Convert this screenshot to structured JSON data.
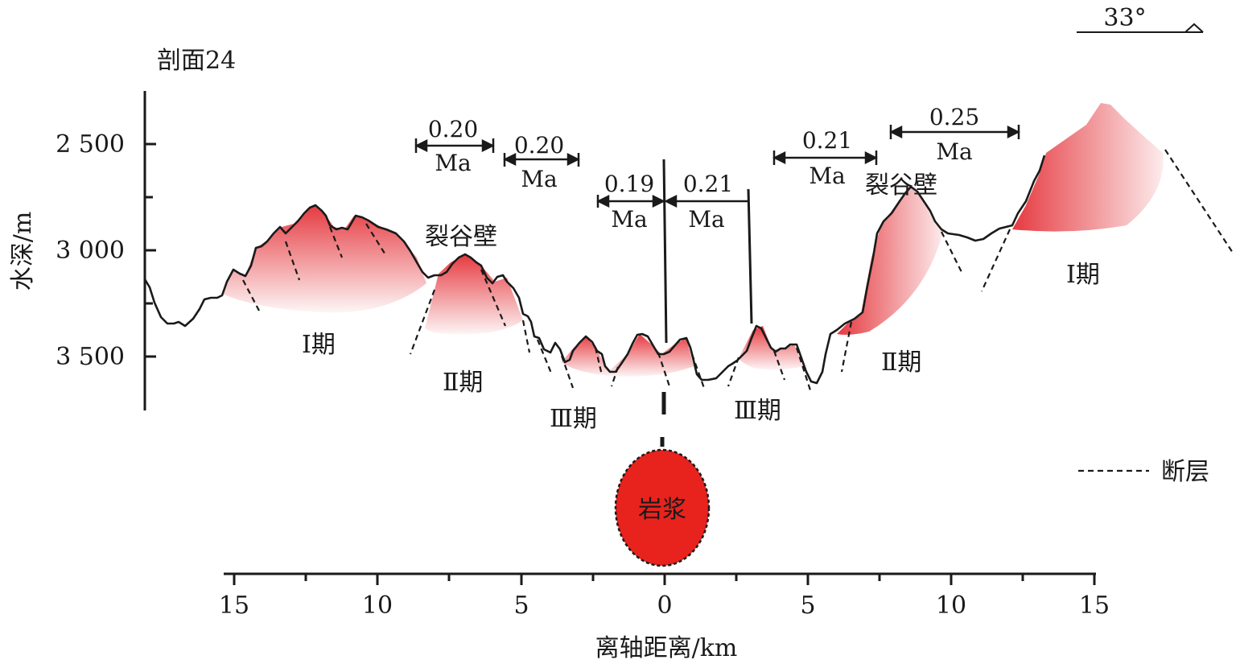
{
  "title": "剖面24",
  "y_axis": {
    "label": "水深/m",
    "ticks": [
      "2 500",
      "3 000",
      "3 500"
    ]
  },
  "x_axis": {
    "label": "离轴距离/km",
    "ticks": [
      "15",
      "10",
      "5",
      "0",
      "5",
      "10",
      "15"
    ]
  },
  "orientation": {
    "angle": "33°"
  },
  "legend": {
    "fault": "断层"
  },
  "magma": "岩浆",
  "rift_walls": [
    "裂谷壁",
    "裂谷壁"
  ],
  "phases": [
    "Ⅰ期",
    "Ⅱ期",
    "Ⅲ期",
    "Ⅲ期",
    "Ⅱ期",
    "Ⅰ期"
  ],
  "ages": [
    {
      "value": "0.20",
      "unit": "Ma"
    },
    {
      "value": "0.20",
      "unit": "Ma"
    },
    {
      "value": "0.19",
      "unit": "Ma"
    },
    {
      "value": "0.21",
      "unit": "Ma"
    },
    {
      "value": "0.21",
      "unit": "Ma"
    },
    {
      "value": "0.25",
      "unit": "Ma"
    }
  ],
  "colors": {
    "volcano": "#e53a40",
    "magma_fill": "#e8231d",
    "line": "#1a1a1a"
  }
}
